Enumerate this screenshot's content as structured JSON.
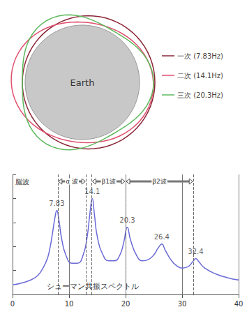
{
  "diagram": {
    "label": "Earth",
    "legend": [
      {
        "label": "一次 (7.83Hz)",
        "color": "#8b2636"
      },
      {
        "label": "二次 (14.1Hz)",
        "color": "#e0506e"
      },
      {
        "label": "三次 (20.3Hz)",
        "color": "#5cb85c"
      }
    ]
  },
  "chart_data": {
    "type": "line",
    "title": "シューマン共振スペクトル",
    "x": [
      0,
      2,
      4,
      5,
      6,
      6.5,
      7,
      7.5,
      7.83,
      8.2,
      8.7,
      9.5,
      10.5,
      11.5,
      12.5,
      13.2,
      13.7,
      14.1,
      14.5,
      15,
      16,
      17,
      18,
      19,
      19.7,
      20.3,
      20.9,
      22,
      23,
      24,
      25,
      25.8,
      26.4,
      27,
      28,
      29,
      30,
      31,
      32,
      32.4,
      33,
      34,
      36,
      38,
      40
    ],
    "values": [
      0.8,
      1.0,
      1.4,
      1.9,
      2.8,
      3.6,
      4.9,
      6.4,
      7.0,
      6.2,
      4.6,
      3.2,
      2.6,
      2.6,
      3.3,
      4.8,
      6.8,
      8.0,
      6.6,
      4.8,
      3.3,
      2.8,
      2.8,
      3.3,
      4.4,
      5.6,
      4.5,
      3.2,
      2.8,
      2.9,
      3.3,
      3.9,
      4.2,
      3.7,
      2.9,
      2.4,
      2.2,
      2.3,
      2.8,
      3.0,
      2.7,
      2.2,
      1.7,
      1.4,
      1.2
    ],
    "color": "#6a6ad8",
    "peak_labels": [
      7.83,
      14.1,
      20.3,
      26.4,
      32.4
    ],
    "bands_title": "脳波",
    "bands": [
      {
        "label": "α 波",
        "from": 8,
        "to": 13
      },
      {
        "label": "β1波",
        "from": 14,
        "to": 20
      },
      {
        "label": "β2波",
        "from": 20,
        "to": 32
      }
    ],
    "xlim": [
      0,
      40
    ],
    "xticks": [
      0,
      10,
      20,
      30,
      40
    ],
    "ylim": [
      0,
      10
    ],
    "yticks": [
      0,
      2,
      4,
      6,
      8,
      10
    ],
    "grid": "x",
    "tick_labels": "x"
  }
}
